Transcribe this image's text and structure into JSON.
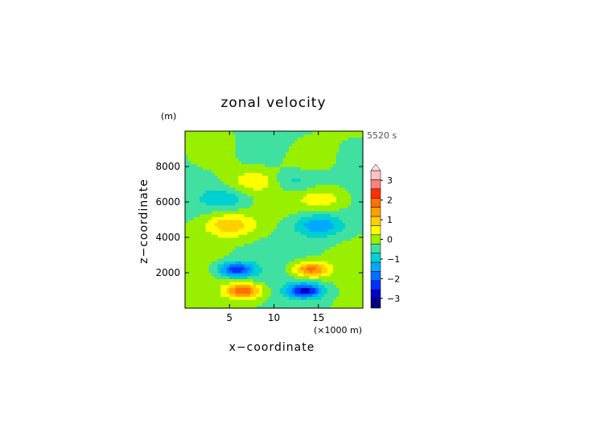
{
  "chart_data": {
    "type": "heatmap",
    "title": "zonal velocity",
    "xlabel": "x−coordinate",
    "ylabel": "z−coordinate",
    "x_unit": "(×1000 m)",
    "y_unit": "(m)",
    "time_label": "5520 s",
    "xlim": [
      0,
      20
    ],
    "ylim": [
      0,
      10000
    ],
    "xticks": [
      5,
      10,
      15
    ],
    "yticks": [
      2000,
      4000,
      6000,
      8000
    ],
    "colorbar_ticks": [
      "3",
      "2",
      "1",
      "0",
      "−1",
      "−2",
      "−3"
    ],
    "colorbar_levels": [
      -3.5,
      -3,
      -2.5,
      -2,
      -1.5,
      -1,
      -0.5,
      0,
      0.5,
      1,
      1.5,
      2,
      2.5,
      3,
      3.5
    ],
    "colorbar_colors": [
      "#000080",
      "#0000c8",
      "#0030ff",
      "#0070ff",
      "#00a8ff",
      "#00d0d0",
      "#40e0a0",
      "#98f000",
      "#ffff00",
      "#ffd000",
      "#ffa000",
      "#ff7000",
      "#ff3000",
      "#ff8080",
      "#ffc0c0"
    ],
    "extend_top": true,
    "features": [
      {
        "x": 6.5,
        "z": 1000,
        "value": 2.6
      },
      {
        "x": 13.5,
        "z": 1000,
        "value": -2.6
      },
      {
        "x": 5.8,
        "z": 2200,
        "value": -2.3
      },
      {
        "x": 14.2,
        "z": 2200,
        "value": 2.3
      },
      {
        "x": 5.0,
        "z": 4700,
        "value": 1.4
      },
      {
        "x": 15.0,
        "z": 4700,
        "value": -1.4
      },
      {
        "x": 4.5,
        "z": 6200,
        "value": -0.8
      },
      {
        "x": 15.5,
        "z": 6200,
        "value": 0.8
      },
      {
        "x": 7.8,
        "z": 7200,
        "value": 0.8
      },
      {
        "x": 12.2,
        "z": 7200,
        "value": -0.8
      }
    ]
  }
}
